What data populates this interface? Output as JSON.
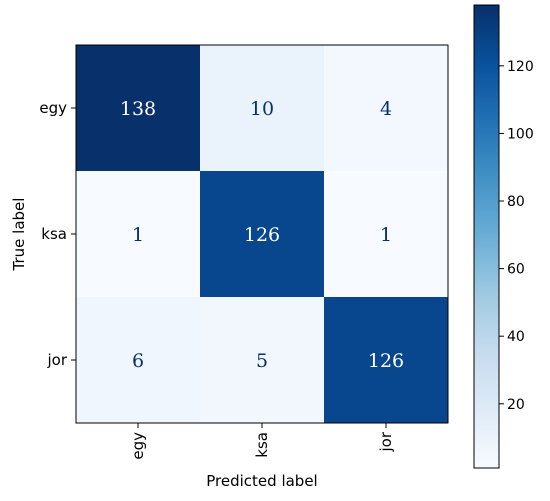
{
  "chart_data": {
    "type": "heatmap",
    "title": "",
    "xlabel": "Predicted label",
    "ylabel": "True label",
    "x_categories": [
      "egy",
      "ksa",
      "jor"
    ],
    "y_categories": [
      "egy",
      "ksa",
      "jor"
    ],
    "values": [
      [
        138,
        10,
        4
      ],
      [
        1,
        126,
        1
      ],
      [
        6,
        5,
        126
      ]
    ],
    "colormap": "Blues",
    "colorbar": {
      "range": [
        1,
        138
      ],
      "ticks": [
        20,
        40,
        60,
        80,
        100,
        120
      ]
    },
    "grid": false
  }
}
